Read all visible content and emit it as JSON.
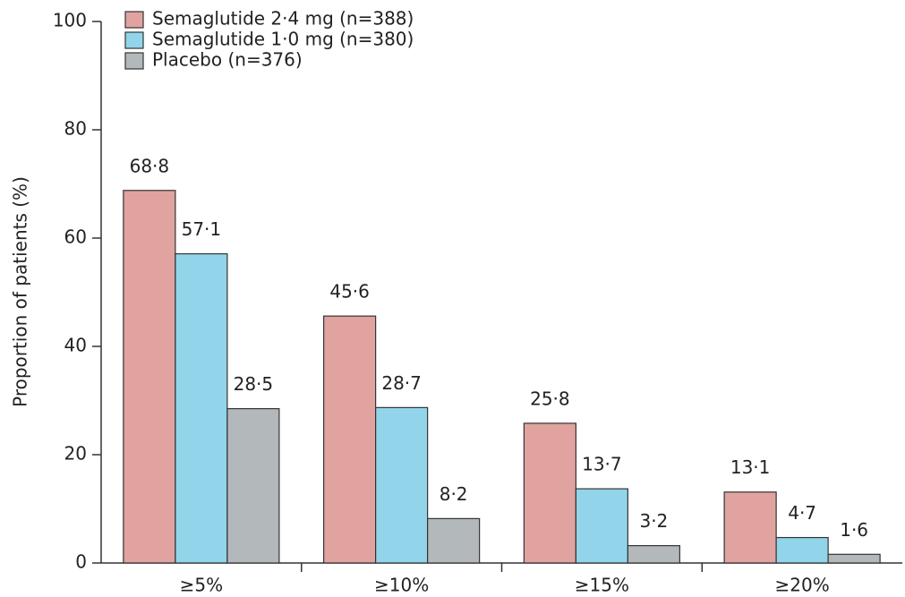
{
  "chart_data": {
    "type": "bar",
    "y_label": "Proportion of patients (%)",
    "categories": [
      "≥5%",
      "≥10%",
      "≥15%",
      "≥20%"
    ],
    "series": [
      {
        "name": "Semaglutide 2·4 mg (n=388)",
        "color": "#e0a3a0",
        "values": [
          68.8,
          45.6,
          25.8,
          13.1
        ],
        "value_labels": [
          "68·8",
          "45·6",
          "25·8",
          "13·1"
        ]
      },
      {
        "name": "Semaglutide 1·0 mg (n=380)",
        "color": "#92d5ea",
        "values": [
          57.1,
          28.7,
          13.7,
          4.7
        ],
        "value_labels": [
          "57·1",
          "28·7",
          "13·7",
          "4·7"
        ]
      },
      {
        "name": "Placebo (n=376)",
        "color": "#b3b8bb",
        "values": [
          28.5,
          8.2,
          3.2,
          1.6
        ],
        "value_labels": [
          "28·5",
          "8·2",
          "3·2",
          "1·6"
        ]
      }
    ],
    "ylim": [
      0,
      100
    ],
    "yticks": [
      0,
      20,
      40,
      60,
      80,
      100
    ],
    "grid": false,
    "legend": "top-left"
  }
}
